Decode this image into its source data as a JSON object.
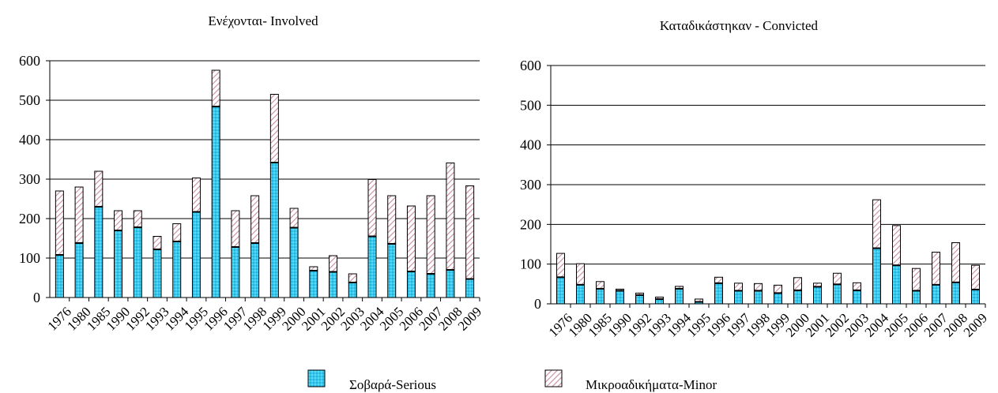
{
  "colors": {
    "serious": "#33ccf0",
    "serious_dots": "#2a9fd0",
    "minor_hatch": "#c98aa0",
    "axis": "#000000",
    "grid": "#000000"
  },
  "legend": {
    "serious": "Σοβαρά-Serious",
    "minor": "Μικροαδικήματα-Minor"
  },
  "chart_data": [
    {
      "type": "bar",
      "stacked": true,
      "title": "Ενέχονται- Involved",
      "categories": [
        "1976",
        "1980",
        "1985",
        "1990",
        "1992",
        "1993",
        "1994",
        "1995",
        "1996",
        "1997",
        "1998",
        "1999",
        "2000",
        "2001",
        "2002",
        "2003",
        "2004",
        "2005",
        "2006",
        "2007",
        "2008",
        "2009"
      ],
      "series": [
        {
          "name": "Σοβαρά-Serious",
          "values": [
            108,
            138,
            230,
            170,
            178,
            122,
            142,
            217,
            484,
            128,
            138,
            342,
            177,
            68,
            65,
            38,
            155,
            136,
            66,
            60,
            70,
            47
          ]
        },
        {
          "name": "Μικροαδικήματα-Minor",
          "values": [
            162,
            142,
            90,
            50,
            42,
            33,
            45,
            86,
            92,
            92,
            120,
            173,
            49,
            10,
            41,
            22,
            144,
            122,
            166,
            198,
            271,
            236
          ]
        }
      ],
      "ylim": [
        0,
        600
      ],
      "yticks": [
        0,
        100,
        200,
        300,
        400,
        500,
        600
      ],
      "grid": true
    },
    {
      "type": "bar",
      "stacked": true,
      "title": "Καταδικάστηκαν - Convicted",
      "categories": [
        "1976",
        "1980",
        "1985",
        "1990",
        "1992",
        "1993",
        "1994",
        "1995",
        "1996",
        "1997",
        "1998",
        "1999",
        "2000",
        "2001",
        "2002",
        "2003",
        "2004",
        "2005",
        "2006",
        "2007",
        "2008",
        "2009"
      ],
      "series": [
        {
          "name": "Σοβαρά-Serious",
          "values": [
            67,
            48,
            38,
            33,
            22,
            12,
            38,
            5,
            52,
            33,
            33,
            27,
            34,
            43,
            49,
            34,
            140,
            97,
            33,
            48,
            54,
            36
          ]
        },
        {
          "name": "Μικροαδικήματα-Minor",
          "values": [
            60,
            53,
            18,
            4,
            5,
            5,
            6,
            7,
            15,
            19,
            18,
            20,
            32,
            9,
            28,
            19,
            122,
            100,
            56,
            82,
            100,
            61
          ]
        }
      ],
      "ylim": [
        0,
        600
      ],
      "yticks": [
        0,
        100,
        200,
        300,
        400,
        500,
        600
      ],
      "grid": true
    }
  ]
}
